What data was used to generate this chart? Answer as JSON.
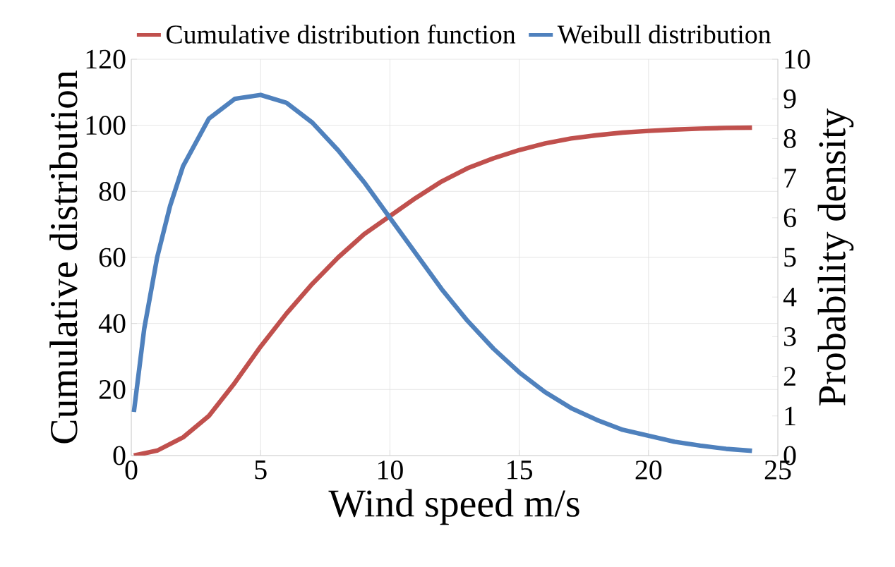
{
  "chart_data": {
    "type": "line",
    "xlabel": "Wind speed m/s",
    "ylabel": "Cumulative distribution",
    "y2label": "Probability density",
    "xlim": [
      0,
      25
    ],
    "xticks": [
      0,
      5,
      10,
      15,
      20,
      25
    ],
    "ylim": [
      0,
      120
    ],
    "yticks": [
      0,
      20,
      40,
      60,
      80,
      100,
      120
    ],
    "y2lim": [
      0,
      10
    ],
    "y2ticks": [
      0,
      1,
      2,
      3,
      4,
      5,
      6,
      7,
      8,
      9,
      10
    ],
    "grid": true,
    "legend": "top",
    "line_style": "solid",
    "series": [
      {
        "name": "Cumulative distribution function",
        "color": "#c0504d",
        "x": [
          0.1,
          1,
          2,
          3,
          4,
          5,
          6,
          7,
          8,
          9,
          10,
          11,
          12,
          13,
          14,
          15,
          16,
          17,
          18,
          19,
          20,
          21,
          22,
          23,
          24
        ],
        "values": [
          0,
          1.5,
          5.5,
          12,
          22,
          33,
          43,
          52,
          60,
          67,
          72.5,
          78,
          83,
          87,
          90,
          92.5,
          94.5,
          96,
          97,
          97.8,
          98.3,
          98.7,
          99,
          99.2,
          99.3
        ]
      },
      {
        "name": "Weibull distribution",
        "color": "#4f81bd",
        "axis": "y2",
        "x": [
          0.1,
          0.5,
          1,
          1.5,
          2,
          2.5,
          3,
          4,
          5,
          6,
          7,
          8,
          9,
          10,
          11,
          12,
          13,
          14,
          15,
          16,
          17,
          18,
          19,
          20,
          21,
          22,
          23,
          24
        ],
        "values": [
          1.1,
          3.2,
          5.0,
          6.3,
          7.3,
          7.9,
          8.5,
          9.0,
          9.1,
          8.9,
          8.4,
          7.7,
          6.9,
          6.0,
          5.1,
          4.2,
          3.4,
          2.7,
          2.1,
          1.6,
          1.2,
          0.9,
          0.65,
          0.5,
          0.35,
          0.25,
          0.17,
          0.12
        ]
      }
    ]
  }
}
